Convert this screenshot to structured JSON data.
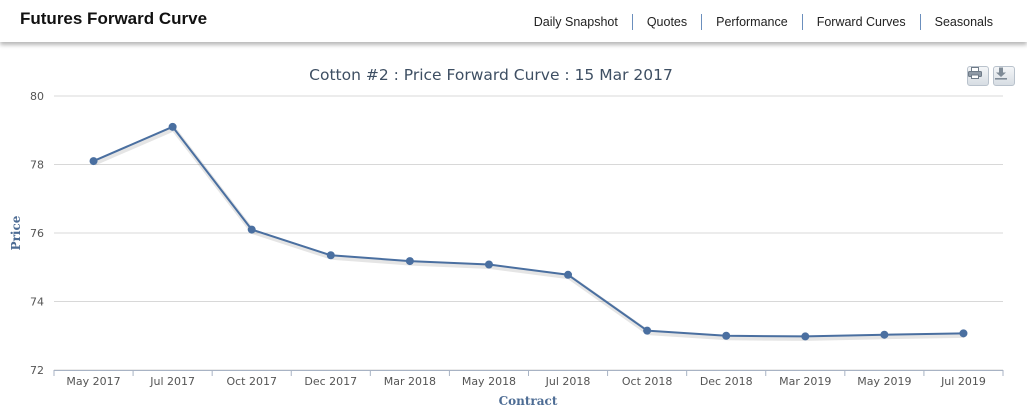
{
  "header": {
    "title": "Futures Forward Curve",
    "nav": [
      "Daily Snapshot",
      "Quotes",
      "Performance",
      "Forward Curves",
      "Seasonals"
    ]
  },
  "toolbar": {
    "print_icon": "print-icon",
    "download_icon": "download-icon"
  },
  "colors": {
    "series": "#4a6fa0",
    "axis_title": "#4d6c94",
    "grid": "#d8d8d8"
  },
  "chart_data": {
    "type": "line",
    "title": "Cotton #2 : Price Forward Curve : 15 Mar 2017",
    "xlabel": "Contract",
    "ylabel": "Price",
    "ylim": [
      72,
      80
    ],
    "yticks": [
      72,
      74,
      76,
      78,
      80
    ],
    "grid": true,
    "categories": [
      "May 2017",
      "Jul 2017",
      "Oct 2017",
      "Dec 2017",
      "Mar 2018",
      "May 2018",
      "Jul 2018",
      "Oct 2018",
      "Dec 2018",
      "Mar 2019",
      "May 2019",
      "Jul 2019"
    ],
    "values": [
      78.1,
      79.1,
      76.1,
      75.35,
      75.18,
      75.08,
      74.78,
      73.15,
      73.0,
      72.98,
      73.03,
      73.07
    ]
  }
}
